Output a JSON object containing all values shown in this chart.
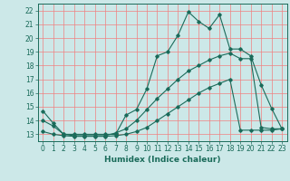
{
  "bg_color": "#cce8e8",
  "grid_color": "#f08080",
  "line_color": "#1a6b5a",
  "xlabel": "Humidex (Indice chaleur)",
  "xlabel_fontsize": 6.5,
  "tick_fontsize": 5.5,
  "xlim": [
    -0.5,
    23.5
  ],
  "ylim": [
    12.5,
    22.5
  ],
  "yticks": [
    13,
    14,
    15,
    16,
    17,
    18,
    19,
    20,
    21,
    22
  ],
  "xticks": [
    0,
    1,
    2,
    3,
    4,
    5,
    6,
    7,
    8,
    9,
    10,
    11,
    12,
    13,
    14,
    15,
    16,
    17,
    18,
    19,
    20,
    21,
    22,
    23
  ],
  "series1_x": [
    0,
    1,
    2,
    3,
    4,
    5,
    6,
    7,
    8,
    9,
    10,
    11,
    12,
    13,
    14,
    15,
    16,
    17,
    18,
    19,
    20,
    21,
    22,
    23
  ],
  "series1_y": [
    14.7,
    13.8,
    13.0,
    13.0,
    13.0,
    13.0,
    13.0,
    13.0,
    14.4,
    14.8,
    16.3,
    18.7,
    19.0,
    20.2,
    21.9,
    21.2,
    20.7,
    21.7,
    19.2,
    19.2,
    18.7,
    16.6,
    14.9,
    13.4
  ],
  "series2_x": [
    0,
    1,
    2,
    3,
    4,
    5,
    6,
    7,
    8,
    9,
    10,
    11,
    12,
    13,
    14,
    15,
    16,
    17,
    18,
    19,
    20,
    21,
    22,
    23
  ],
  "series2_y": [
    14.0,
    13.6,
    13.0,
    12.9,
    12.9,
    12.9,
    12.9,
    13.1,
    13.4,
    14.0,
    14.8,
    15.6,
    16.3,
    17.0,
    17.6,
    18.0,
    18.4,
    18.7,
    18.9,
    18.5,
    18.5,
    13.5,
    13.4,
    13.4
  ],
  "series3_x": [
    0,
    1,
    2,
    3,
    4,
    5,
    6,
    7,
    8,
    9,
    10,
    11,
    12,
    13,
    14,
    15,
    16,
    17,
    18,
    19,
    20,
    21,
    22,
    23
  ],
  "series3_y": [
    13.2,
    13.0,
    12.9,
    12.85,
    12.85,
    12.85,
    12.85,
    12.9,
    13.0,
    13.2,
    13.5,
    14.0,
    14.5,
    15.0,
    15.5,
    16.0,
    16.4,
    16.7,
    17.0,
    13.3,
    13.3,
    13.3,
    13.3,
    13.4
  ]
}
